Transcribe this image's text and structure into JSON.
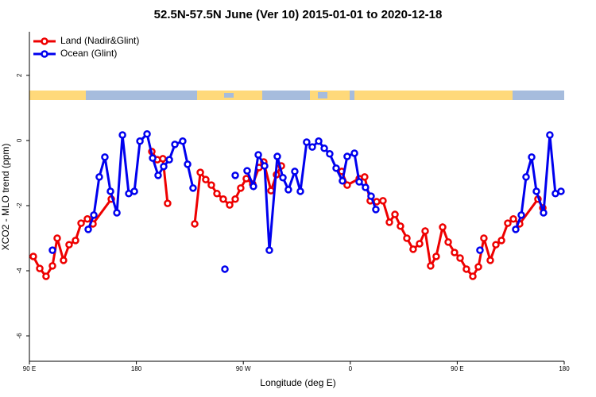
{
  "chart_data": {
    "type": "line",
    "title": "52.5N-57.5N June (Ver 10)   2015-01-01 to 2020-12-18",
    "xlabel": "Longitude (deg E)",
    "ylabel": "XCO2 - MLO trend (ppm)",
    "xlim": [
      90,
      540
    ],
    "ylim": [
      -6.78,
      3.34
    ],
    "xticks": [
      {
        "value": 90,
        "label": "90 E"
      },
      180,
      {
        "value": 270,
        "label": "90 W"
      },
      {
        "value": 360,
        "label": "0"
      },
      {
        "value": 450,
        "label": "90 E"
      },
      180
    ],
    "yticks": [
      -6,
      -4,
      -2,
      0,
      2
    ],
    "legend": "top-left",
    "series": [
      {
        "name": "Land (Nadir&Glint)",
        "color": "#ee0000",
        "x": [
          93.3,
          98.7,
          104.0,
          109.4,
          113.4,
          118.7,
          123.4,
          128.8,
          133.5,
          138.8,
          143.5,
          158.9,
          null,
          193.0,
          197.6,
          202.3,
          206.3,
          null,
          229.1,
          233.8,
          238.4,
          243.1,
          247.8,
          253.1,
          258.5,
          263.2,
          267.8,
          272.5,
          277.9,
          283.2,
          287.2,
          293.3,
          297.9,
          302.0,
          null,
          352.8,
          357.4,
          367.5,
          372.1,
          376.8,
          382.2,
          387.5,
          392.9,
          397.6,
          402.2,
          407.6,
          412.9,
          418.3,
          423.0,
          427.6,
          432.3,
          437.7,
          442.4,
          447.7,
          452.4,
          457.7,
          463.1,
          467.8,
          472.4,
          477.8,
          482.5,
          487.2,
          492.5,
          497.2,
          502.5,
          517.9,
          522.0
        ],
        "values": [
          -3.56,
          -3.93,
          -4.17,
          -3.85,
          -3.0,
          -3.68,
          -3.2,
          -3.07,
          -2.54,
          -2.41,
          -2.56,
          -1.8,
          null,
          -0.34,
          -0.59,
          -0.56,
          -1.93,
          null,
          -2.56,
          -0.98,
          -1.2,
          -1.37,
          -1.63,
          -1.8,
          -1.98,
          -1.8,
          -1.46,
          -1.17,
          -1.34,
          -0.83,
          -0.66,
          -1.54,
          -1.05,
          -0.78,
          null,
          -0.95,
          -1.37,
          -1.17,
          -1.12,
          -1.85,
          -1.88,
          -1.85,
          -2.51,
          -2.27,
          -2.63,
          -3.0,
          -3.34,
          -3.17,
          -2.78,
          -3.85,
          -3.56,
          -2.66,
          -3.12,
          -3.44,
          -3.61,
          -3.95,
          -4.17,
          -3.88,
          -3.0,
          -3.68,
          -3.2,
          -3.07,
          -2.54,
          -2.41,
          -2.56,
          -1.8,
          -2.07
        ]
      },
      {
        "name": "Ocean (Glint)",
        "color": "#0000ee",
        "x": [
          109.4,
          null,
          139.5,
          144.2,
          148.8,
          153.5,
          158.2,
          163.6,
          168.3,
          173.6,
          178.3,
          183.0,
          189.0,
          193.7,
          198.3,
          203.0,
          207.7,
          212.4,
          219.0,
          223.1,
          227.7,
          null,
          254.5,
          null,
          263.2,
          null,
          273.2,
          278.5,
          282.6,
          287.9,
          291.9,
          298.6,
          303.3,
          307.9,
          313.3,
          318.0,
          323.3,
          328.0,
          333.4,
          338.1,
          342.7,
          348.1,
          353.4,
          357.4,
          363.5,
          367.5,
          372.8,
          377.5,
          381.5,
          null,
          469.1,
          null,
          499.2,
          503.9,
          507.9,
          512.6,
          516.6,
          522.6,
          527.9,
          532.6,
          537.3
        ],
        "values": [
          -3.37,
          null,
          -2.73,
          -2.29,
          -1.12,
          -0.51,
          -1.56,
          -2.22,
          0.17,
          -1.63,
          -1.56,
          -0.02,
          0.2,
          -0.54,
          -1.07,
          -0.8,
          -0.59,
          -0.12,
          -0.02,
          -0.73,
          -1.46,
          null,
          -3.95,
          null,
          -1.07,
          null,
          -0.93,
          -1.41,
          -0.44,
          -0.78,
          -3.37,
          -0.49,
          -1.14,
          -1.51,
          -0.95,
          -1.56,
          -0.05,
          -0.2,
          -0.02,
          -0.24,
          -0.41,
          -0.85,
          -1.24,
          -0.49,
          -0.39,
          -1.27,
          -1.44,
          -1.71,
          -2.12,
          null,
          -3.37,
          null,
          -2.73,
          -2.29,
          -1.12,
          -0.51,
          -1.56,
          -2.22,
          0.17,
          -1.63,
          -1.56
        ]
      }
    ]
  }
}
